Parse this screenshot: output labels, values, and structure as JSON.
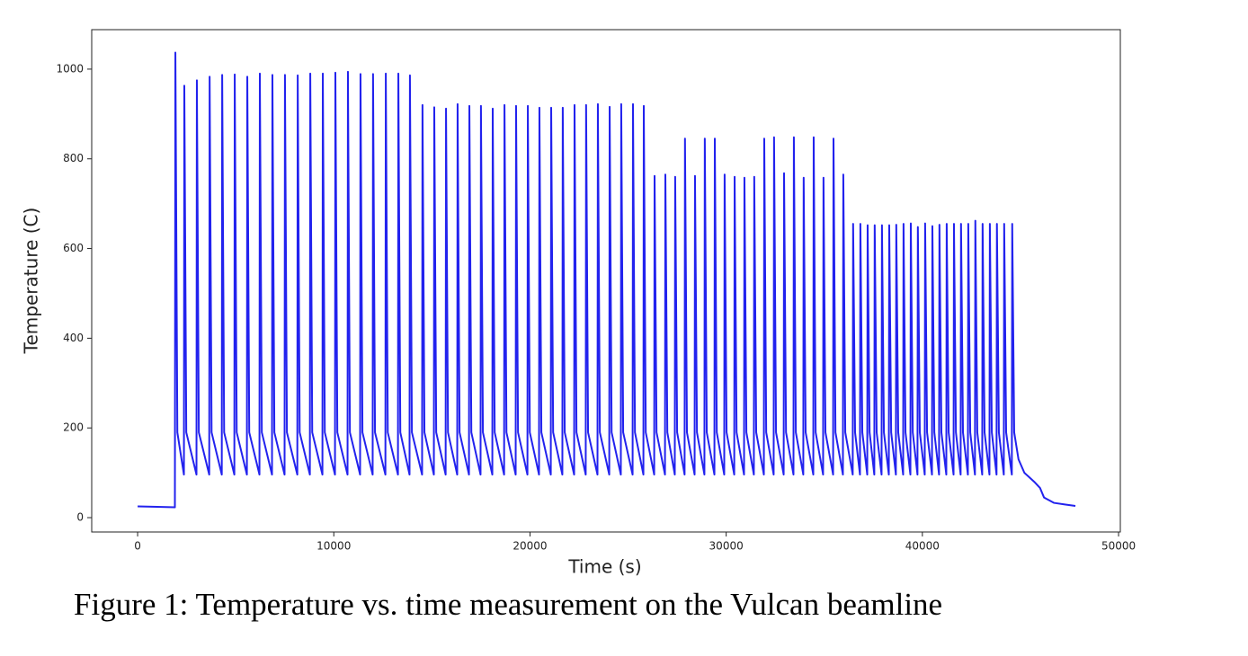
{
  "chart_data": {
    "type": "line",
    "x_label": "Time (s)",
    "y_label": "Temperature (C)",
    "color": "#2222ee",
    "xlim": [
      -2340,
      50090
    ],
    "ylim": [
      -32,
      1088
    ],
    "xticks": [
      0,
      10000,
      20000,
      30000,
      40000,
      50000
    ],
    "yticks": [
      0,
      200,
      400,
      600,
      800,
      1000
    ],
    "x": [
      0,
      1000,
      1900,
      1925,
      2025,
      2360,
      2380,
      2480,
      3000,
      3020,
      3120,
      3650,
      3670,
      3770,
      4290,
      4310,
      4410,
      4930,
      4950,
      5050,
      5570,
      5590,
      5690,
      6210,
      6230,
      6330,
      6850,
      6870,
      6970,
      7490,
      7510,
      7610,
      8140,
      8160,
      8260,
      8780,
      8800,
      8900,
      9420,
      9440,
      9540,
      10060,
      10080,
      10180,
      10700,
      10720,
      10820,
      11340,
      11360,
      11460,
      11980,
      12000,
      12100,
      12630,
      12650,
      12750,
      13270,
      13290,
      13390,
      13860,
      13880,
      13980,
      14500,
      14520,
      14620,
      15100,
      15120,
      15220,
      15700,
      15720,
      15820,
      16290,
      16310,
      16410,
      16890,
      16910,
      17010,
      17480,
      17500,
      17600,
      18080,
      18100,
      18200,
      18680,
      18700,
      18800,
      19270,
      19290,
      19390,
      19870,
      19890,
      19990,
      20460,
      20480,
      20580,
      21060,
      21080,
      21180,
      21650,
      21670,
      21770,
      22250,
      22270,
      22370,
      22840,
      22860,
      22960,
      23440,
      23460,
      23560,
      24040,
      24060,
      24160,
      24630,
      24650,
      24750,
      25230,
      25250,
      25350,
      25780,
      25800,
      25900,
      26330,
      26350,
      26450,
      26880,
      26900,
      27000,
      27380,
      27400,
      27500,
      27880,
      27900,
      28000,
      28390,
      28410,
      28510,
      28890,
      28910,
      29010,
      29400,
      29420,
      29520,
      29900,
      29920,
      30020,
      30410,
      30430,
      30530,
      30910,
      30930,
      31030,
      31410,
      31430,
      31530,
      31920,
      31940,
      32040,
      32420,
      32440,
      32540,
      32930,
      32950,
      33050,
      33430,
      33450,
      33550,
      33930,
      33950,
      34050,
      34440,
      34460,
      34560,
      34940,
      34960,
      35060,
      35450,
      35470,
      35570,
      35950,
      35970,
      36070,
      36450,
      36470,
      36570,
      36820,
      36840,
      36940,
      37190,
      37210,
      37310,
      37550,
      37570,
      37670,
      37920,
      37940,
      38040,
      38290,
      38310,
      38410,
      38650,
      38670,
      38770,
      39020,
      39040,
      39140,
      39390,
      39410,
      39510,
      39750,
      39770,
      39870,
      40120,
      40140,
      40240,
      40490,
      40510,
      40610,
      40850,
      40870,
      40970,
      41220,
      41240,
      41340,
      41590,
      41610,
      41710,
      41950,
      41970,
      42070,
      42320,
      42340,
      42440,
      42680,
      42700,
      42800,
      43050,
      43070,
      43170,
      43420,
      43440,
      43540,
      43780,
      43800,
      43900,
      44150,
      44170,
      44270,
      44560,
      44580,
      44680,
      44900,
      45200,
      45700,
      46000,
      46200,
      46700,
      47300,
      47800
    ],
    "values": [
      25,
      24,
      23,
      1037,
      190,
      96,
      963,
      190,
      96,
      975,
      190,
      96,
      983,
      190,
      96,
      987,
      190,
      96,
      988,
      190,
      96,
      983,
      190,
      96,
      990,
      190,
      96,
      987,
      190,
      96,
      987,
      190,
      96,
      986,
      190,
      96,
      990,
      190,
      96,
      990,
      190,
      96,
      992,
      190,
      96,
      994,
      190,
      96,
      989,
      190,
      96,
      989,
      190,
      96,
      990,
      190,
      96,
      990,
      190,
      96,
      986,
      190,
      96,
      920,
      190,
      96,
      915,
      190,
      96,
      912,
      190,
      96,
      922,
      190,
      96,
      918,
      190,
      96,
      918,
      190,
      96,
      912,
      190,
      96,
      920,
      190,
      96,
      918,
      190,
      96,
      918,
      190,
      96,
      914,
      190,
      96,
      914,
      190,
      96,
      914,
      190,
      96,
      920,
      190,
      96,
      920,
      190,
      96,
      922,
      190,
      96,
      916,
      190,
      96,
      922,
      190,
      96,
      922,
      190,
      96,
      918,
      190,
      96,
      762,
      190,
      96,
      765,
      190,
      96,
      760,
      190,
      96,
      845,
      190,
      96,
      762,
      190,
      96,
      845,
      190,
      96,
      845,
      190,
      96,
      765,
      190,
      96,
      760,
      190,
      96,
      758,
      190,
      96,
      760,
      190,
      96,
      845,
      190,
      96,
      848,
      190,
      96,
      768,
      190,
      96,
      848,
      190,
      96,
      758,
      190,
      96,
      848,
      190,
      96,
      758,
      190,
      96,
      845,
      190,
      96,
      765,
      190,
      96,
      655,
      190,
      96,
      655,
      190,
      96,
      652,
      190,
      96,
      652,
      190,
      96,
      652,
      190,
      96,
      652,
      190,
      96,
      653,
      190,
      96,
      655,
      190,
      96,
      656,
      190,
      96,
      648,
      190,
      96,
      656,
      190,
      96,
      650,
      190,
      96,
      653,
      190,
      96,
      655,
      190,
      96,
      655,
      190,
      96,
      655,
      190,
      96,
      655,
      190,
      96,
      662,
      190,
      96,
      655,
      190,
      96,
      655,
      190,
      96,
      655,
      190,
      96,
      655,
      190,
      96,
      655,
      190,
      130,
      100,
      80,
      66,
      45,
      33,
      29,
      26
    ]
  },
  "caption": "Figure 1: Temperature vs. time measurement on the Vulcan beamline"
}
